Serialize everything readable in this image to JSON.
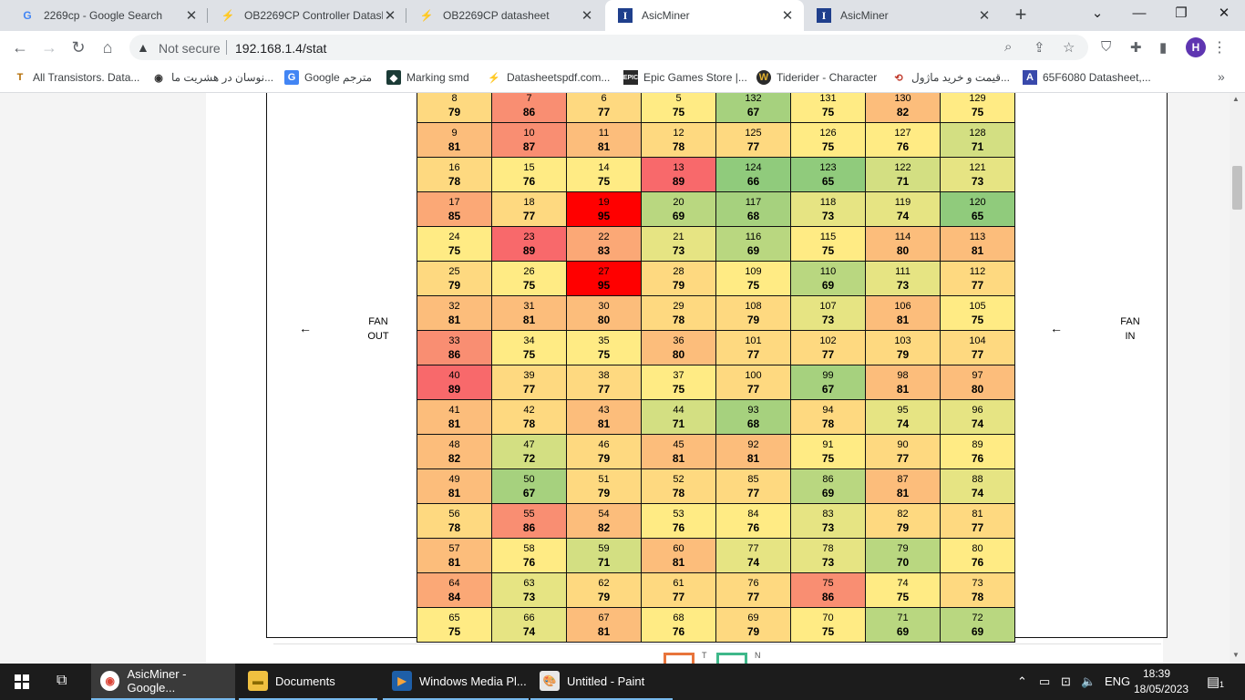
{
  "browser": {
    "tabs": [
      {
        "title": "2269cp - Google Search",
        "icon": "google-icon",
        "active": false
      },
      {
        "title": "OB2269CP Controller Datash",
        "icon": "pdf-icon",
        "active": false
      },
      {
        "title": "OB2269CP datasheet",
        "icon": "pdf-icon",
        "active": false
      },
      {
        "title": "AsicMiner",
        "icon": "asicminer-icon",
        "active": true
      },
      {
        "title": "AsicMiner",
        "icon": "asicminer-icon",
        "active": false
      }
    ],
    "not_secure": "Not secure",
    "url": "192.168.1.4/stat",
    "profile_initial": "H",
    "bookmarks": [
      {
        "label": "All Transistors. Data...",
        "icon": "tr-icon"
      },
      {
        "label": "نوسان در هشریت ما...",
        "icon": "coin-icon"
      },
      {
        "label": "Google مترجم",
        "icon": "translate-icon"
      },
      {
        "label": "Marking smd",
        "icon": "marking-icon"
      },
      {
        "label": "Datasheetspdf.com...",
        "icon": "pdf-icon"
      },
      {
        "label": "Epic Games Store |...",
        "icon": "epic-icon"
      },
      {
        "label": "Tiderider - Character",
        "icon": "wow-icon"
      },
      {
        "label": "قیمت و خرید ماژول...",
        "icon": "shop-icon"
      },
      {
        "label": "65F6080 Datasheet,...",
        "icon": "alldatasheet-icon"
      }
    ]
  },
  "page": {
    "fan_out": [
      "FAN",
      "OUT"
    ],
    "fan_in": [
      "FAN",
      "IN"
    ],
    "arrow": "←",
    "legend": [
      "T",
      "N"
    ],
    "chip_map": [
      [
        [
          8,
          79
        ],
        [
          7,
          86
        ],
        [
          6,
          77
        ],
        [
          5,
          75
        ],
        [
          132,
          67
        ],
        [
          131,
          75
        ],
        [
          130,
          82
        ],
        [
          129,
          75
        ]
      ],
      [
        [
          9,
          81
        ],
        [
          10,
          87
        ],
        [
          11,
          81
        ],
        [
          12,
          78
        ],
        [
          125,
          77
        ],
        [
          126,
          75
        ],
        [
          127,
          76
        ],
        [
          128,
          71
        ]
      ],
      [
        [
          16,
          78
        ],
        [
          15,
          76
        ],
        [
          14,
          75
        ],
        [
          13,
          89
        ],
        [
          124,
          66
        ],
        [
          123,
          65
        ],
        [
          122,
          71
        ],
        [
          121,
          73
        ]
      ],
      [
        [
          17,
          85
        ],
        [
          18,
          77
        ],
        [
          19,
          95
        ],
        [
          20,
          69
        ],
        [
          117,
          68
        ],
        [
          118,
          73
        ],
        [
          119,
          74
        ],
        [
          120,
          65
        ]
      ],
      [
        [
          24,
          75
        ],
        [
          23,
          89
        ],
        [
          22,
          83
        ],
        [
          21,
          73
        ],
        [
          116,
          69
        ],
        [
          115,
          75
        ],
        [
          114,
          80
        ],
        [
          113,
          81
        ]
      ],
      [
        [
          25,
          79
        ],
        [
          26,
          75
        ],
        [
          27,
          95
        ],
        [
          28,
          79
        ],
        [
          109,
          75
        ],
        [
          110,
          69
        ],
        [
          111,
          73
        ],
        [
          112,
          77
        ]
      ],
      [
        [
          32,
          81
        ],
        [
          31,
          81
        ],
        [
          30,
          80
        ],
        [
          29,
          78
        ],
        [
          108,
          79
        ],
        [
          107,
          73
        ],
        [
          106,
          81
        ],
        [
          105,
          75
        ]
      ],
      [
        [
          33,
          86
        ],
        [
          34,
          75
        ],
        [
          35,
          75
        ],
        [
          36,
          80
        ],
        [
          101,
          77
        ],
        [
          102,
          77
        ],
        [
          103,
          79
        ],
        [
          104,
          77
        ]
      ],
      [
        [
          40,
          89
        ],
        [
          39,
          77
        ],
        [
          38,
          77
        ],
        [
          37,
          75
        ],
        [
          100,
          77
        ],
        [
          99,
          67
        ],
        [
          98,
          81
        ],
        [
          97,
          80
        ]
      ],
      [
        [
          41,
          81
        ],
        [
          42,
          78
        ],
        [
          43,
          81
        ],
        [
          44,
          71
        ],
        [
          93,
          68
        ],
        [
          94,
          78
        ],
        [
          95,
          74
        ],
        [
          96,
          74
        ]
      ],
      [
        [
          48,
          82
        ],
        [
          47,
          72
        ],
        [
          46,
          79
        ],
        [
          45,
          81
        ],
        [
          92,
          81
        ],
        [
          91,
          75
        ],
        [
          90,
          77
        ],
        [
          89,
          76
        ]
      ],
      [
        [
          49,
          81
        ],
        [
          50,
          67
        ],
        [
          51,
          79
        ],
        [
          52,
          78
        ],
        [
          85,
          77
        ],
        [
          86,
          69
        ],
        [
          87,
          81
        ],
        [
          88,
          74
        ]
      ],
      [
        [
          56,
          78
        ],
        [
          55,
          86
        ],
        [
          54,
          82
        ],
        [
          53,
          76
        ],
        [
          84,
          76
        ],
        [
          83,
          73
        ],
        [
          82,
          79
        ],
        [
          81,
          77
        ]
      ],
      [
        [
          57,
          81
        ],
        [
          58,
          76
        ],
        [
          59,
          71
        ],
        [
          60,
          81
        ],
        [
          77,
          74
        ],
        [
          78,
          73
        ],
        [
          79,
          70
        ],
        [
          80,
          76
        ]
      ],
      [
        [
          64,
          84
        ],
        [
          63,
          73
        ],
        [
          62,
          79
        ],
        [
          61,
          77
        ],
        [
          76,
          77
        ],
        [
          75,
          86
        ],
        [
          74,
          75
        ],
        [
          73,
          78
        ]
      ],
      [
        [
          65,
          75
        ],
        [
          66,
          74
        ],
        [
          67,
          81
        ],
        [
          68,
          76
        ],
        [
          69,
          79
        ],
        [
          70,
          75
        ],
        [
          71,
          69
        ],
        [
          72,
          69
        ]
      ]
    ]
  },
  "taskbar": {
    "items": [
      {
        "label": "AsicMiner - Google...",
        "icon": "chrome-icon",
        "active": true
      },
      {
        "label": "Documents",
        "icon": "folder-icon",
        "active": false
      },
      {
        "label": "Windows Media Pl...",
        "icon": "media-player-icon",
        "active": false
      },
      {
        "label": "Untitled - Paint",
        "icon": "paint-icon",
        "active": false
      }
    ],
    "language": "ENG",
    "time": "18:39",
    "date": "18/05/2023",
    "notifications": "1"
  },
  "colors": {
    "red": "#f8696b",
    "orange": "#fbaa77",
    "yellow": "#ffeb84",
    "green": "#90cb7c",
    "hot": "#ff0000"
  }
}
